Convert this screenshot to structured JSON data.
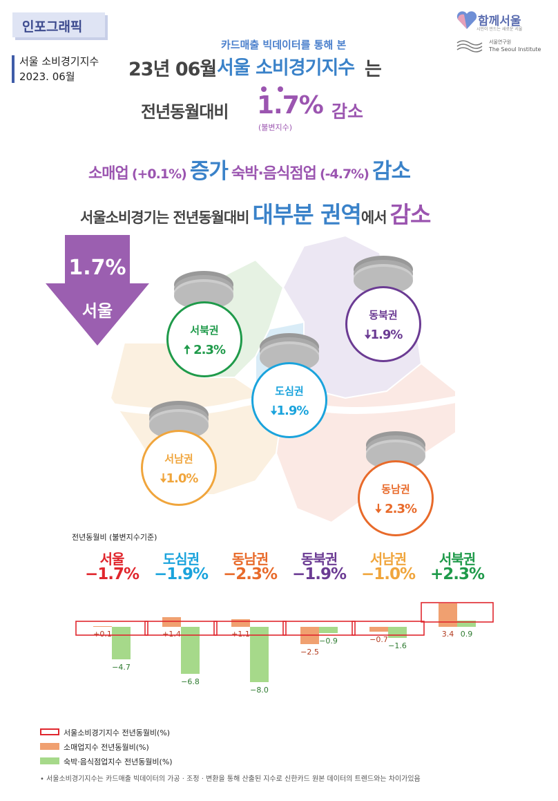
{
  "header": {
    "badge": "인포그래픽",
    "side_title": "서울 소비경기지수",
    "side_date": "2023. 06월",
    "logo_text": "함께서울",
    "logo_sub": "시민이 만드는 새로운 서울",
    "institute_kr": "서울연구원",
    "institute_en": "The Seoul Institute",
    "subhead": "카드매출 빅데이터를 통해 본",
    "date": "23년 06월",
    "index_name": "서울 소비경기지수",
    "particle": "는"
  },
  "summary": {
    "yoy_label": "전년동월대비",
    "yoy_value": "1.7%",
    "yoy_unit": "(불변지수)",
    "yoy_direction": "감소",
    "retail_label": "소매업",
    "retail_value": "(+0.1%)",
    "retail_direction": "증가",
    "food_label": "숙박·음식점업",
    "food_value": "(-4.7%)",
    "food_direction": "감소",
    "line4_prefix": "서울소비경기는 전년동월대비",
    "line4_highlight": "대부분 권역",
    "line4_mid": "에서",
    "line4_end": "감소"
  },
  "map": {
    "arrow_value": "1.7%",
    "arrow_name": "서울",
    "regions": [
      {
        "name": "서북권",
        "value": "2.3%",
        "dir": "up",
        "color": "#1f9a4a"
      },
      {
        "name": "동북권",
        "value": "1.9%",
        "dir": "down",
        "color": "#6b3b93"
      },
      {
        "name": "도심권",
        "value": "1.9%",
        "dir": "down",
        "color": "#1aa3dc"
      },
      {
        "name": "서남권",
        "value": "1.0%",
        "dir": "down",
        "color": "#f0a53c"
      },
      {
        "name": "동남권",
        "value": "2.3%",
        "dir": "down",
        "color": "#e86a2a"
      }
    ],
    "arrow_up": "🠅",
    "arrow_down": "🠇"
  },
  "chart_data": {
    "type": "bar",
    "caption": "전년동월비 (불변지수기준)",
    "categories": [
      "서울",
      "도심권",
      "동남권",
      "동북권",
      "서남권",
      "서북권"
    ],
    "category_values": [
      "−1.7%",
      "−1.9%",
      "−2.3%",
      "−1.9%",
      "−1.0%",
      "+2.3%"
    ],
    "category_colors": [
      "#e0262d",
      "#1aa3dc",
      "#e86a2a",
      "#6b3b93",
      "#f0a53c",
      "#1f9a4a"
    ],
    "series": [
      {
        "name": "소매업지수 전년동월비(%)",
        "color": "#f0a070",
        "values": [
          0.1,
          1.4,
          1.1,
          -2.5,
          -0.7,
          3.4
        ],
        "labels": [
          "+0.1",
          "+1.4",
          "+1.1",
          "−2.5",
          "−0.7",
          "3.4"
        ]
      },
      {
        "name": "숙박·음식점업지수 전년동월비(%)",
        "color": "#a6d98a",
        "values": [
          -4.7,
          -6.8,
          -8.0,
          -0.9,
          -1.6,
          0.9
        ],
        "labels": [
          "−4.7",
          "−6.8",
          "−8.0",
          "−0.9",
          "−1.6",
          "0.9"
        ]
      }
    ],
    "highlight_series": {
      "name": "서울소비경기지수 전년동월비(%)",
      "color": "#e0262d",
      "values": [
        -1.7,
        -1.9,
        -2.3,
        -1.9,
        -1.0,
        2.3
      ]
    }
  },
  "legend": [
    {
      "label": "서울소비경기지수 전년동월비(%)",
      "style": "outline",
      "color": "#e0262d"
    },
    {
      "label": "소매업지수 전년동월비(%)",
      "style": "fill",
      "color": "#f0a070"
    },
    {
      "label": "숙박·음식점업지수 전년동월비(%)",
      "style": "fill",
      "color": "#a6d98a"
    }
  ],
  "footnote": "• 서울소비경기지수는 카드매출 빅데이터의 가공 · 조정 · 변환을 통해 산출된 지수로 신한카드 원본 데이터의 트렌드와는 차이가있음"
}
